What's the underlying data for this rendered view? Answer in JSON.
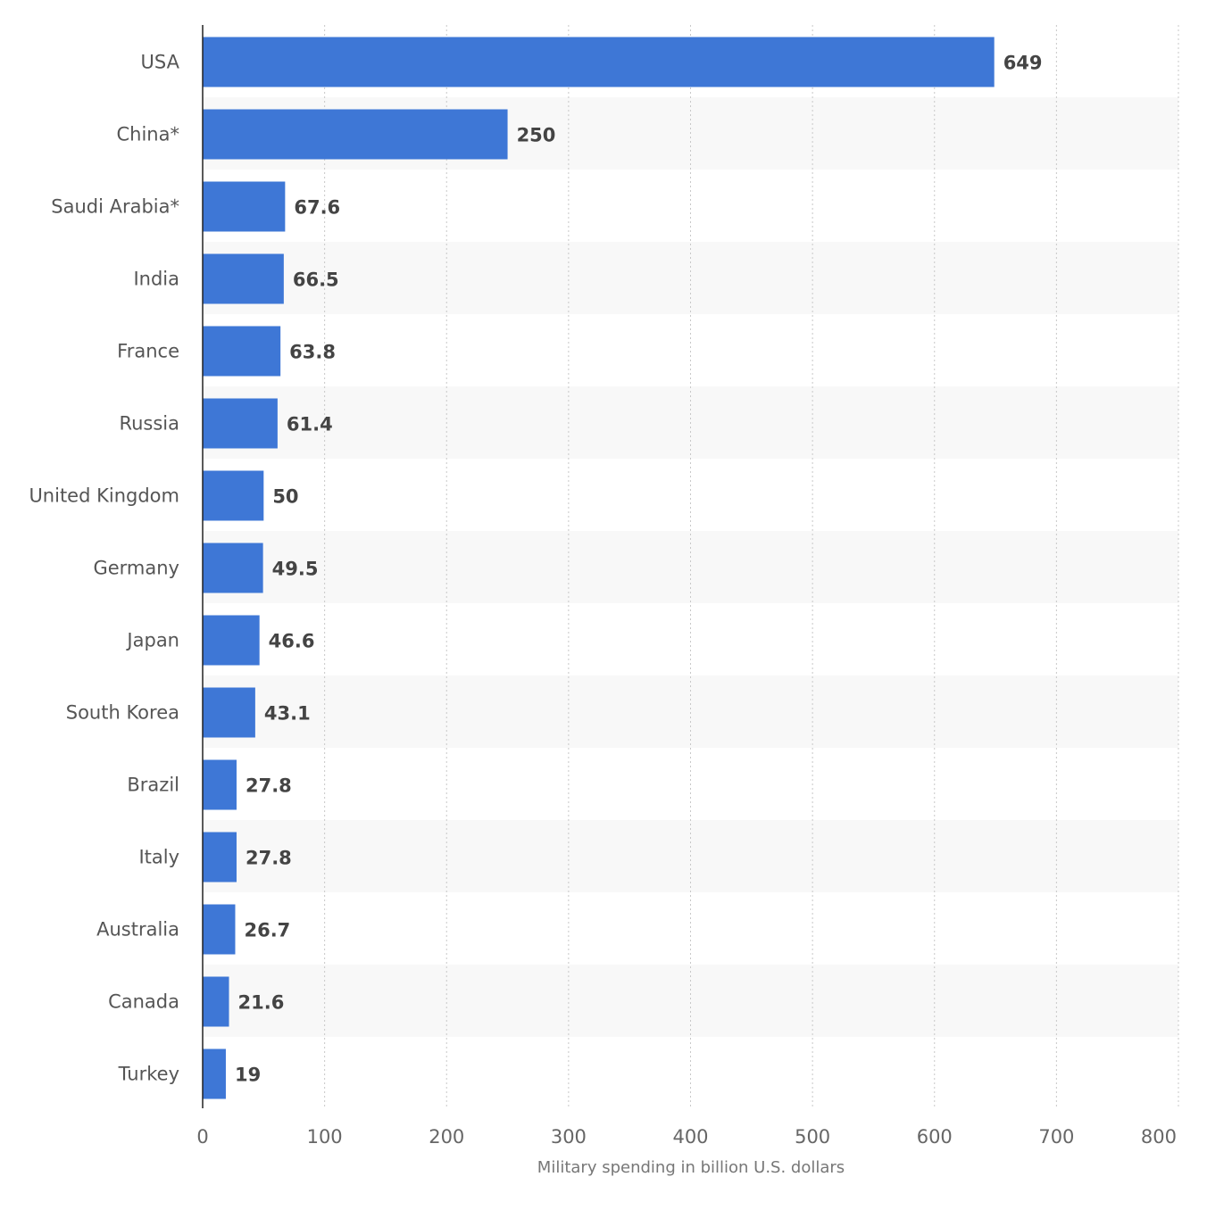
{
  "chart_data": {
    "type": "bar",
    "orientation": "horizontal",
    "title": "",
    "xlabel": "Military spending in billion U.S. dollars",
    "ylabel": "",
    "xlim": [
      0,
      800
    ],
    "xticks": [
      0,
      100,
      200,
      300,
      400,
      500,
      600,
      700,
      800
    ],
    "grid": true,
    "legend": "none",
    "bar_color": "#3e77d6",
    "categories": [
      "USA",
      "China*",
      "Saudi Arabia*",
      "India",
      "France",
      "Russia",
      "United Kingdom",
      "Germany",
      "Japan",
      "South Korea",
      "Brazil",
      "Italy",
      "Australia",
      "Canada",
      "Turkey"
    ],
    "values": [
      649,
      250,
      67.6,
      66.5,
      63.8,
      61.4,
      50,
      49.5,
      46.6,
      43.1,
      27.8,
      27.8,
      26.7,
      21.6,
      19
    ],
    "value_labels": [
      "649",
      "250",
      "67.6",
      "66.5",
      "63.8",
      "61.4",
      "50",
      "49.5",
      "46.6",
      "43.1",
      "27.8",
      "27.8",
      "26.7",
      "21.6",
      "19"
    ]
  }
}
